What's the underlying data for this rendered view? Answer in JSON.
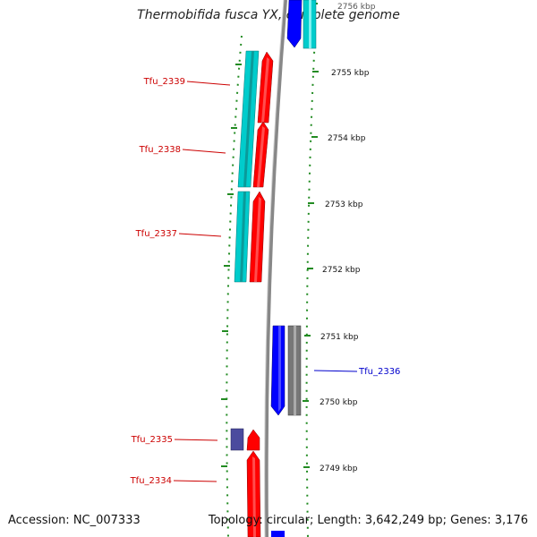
{
  "title": "Thermobifida fusca YX, complete genome",
  "footer": {
    "accession": "Accession: NC_007333",
    "topology": "Topology: circular; Length: 3,642,249 bp; Genes: 3,176"
  },
  "scale": {
    "unit": "kbp",
    "ticks": [
      "2756 kbp",
      "2755 kbp",
      "2754 kbp",
      "2753 kbp",
      "2752 kbp",
      "2751 kbp",
      "2750 kbp",
      "2749 kbp"
    ]
  },
  "genes": [
    {
      "id": "Tfu_2339",
      "color": "#cc0000"
    },
    {
      "id": "Tfu_2338",
      "color": "#cc0000"
    },
    {
      "id": "Tfu_2337",
      "color": "#cc0000"
    },
    {
      "id": "Tfu_2336",
      "color": "#0000cc"
    },
    {
      "id": "Tfu_2335",
      "color": "#cc0000"
    },
    {
      "id": "Tfu_2334",
      "color": "#cc0000"
    }
  ],
  "colors": {
    "cds_forward": "#ff0000",
    "cds_reverse": "#0000ff",
    "cds_cyan": "#00cccc",
    "cds_gray": "#777777",
    "cds_purple": "#4b4b9e",
    "backbone": "#888888",
    "tick": "#228b22"
  }
}
